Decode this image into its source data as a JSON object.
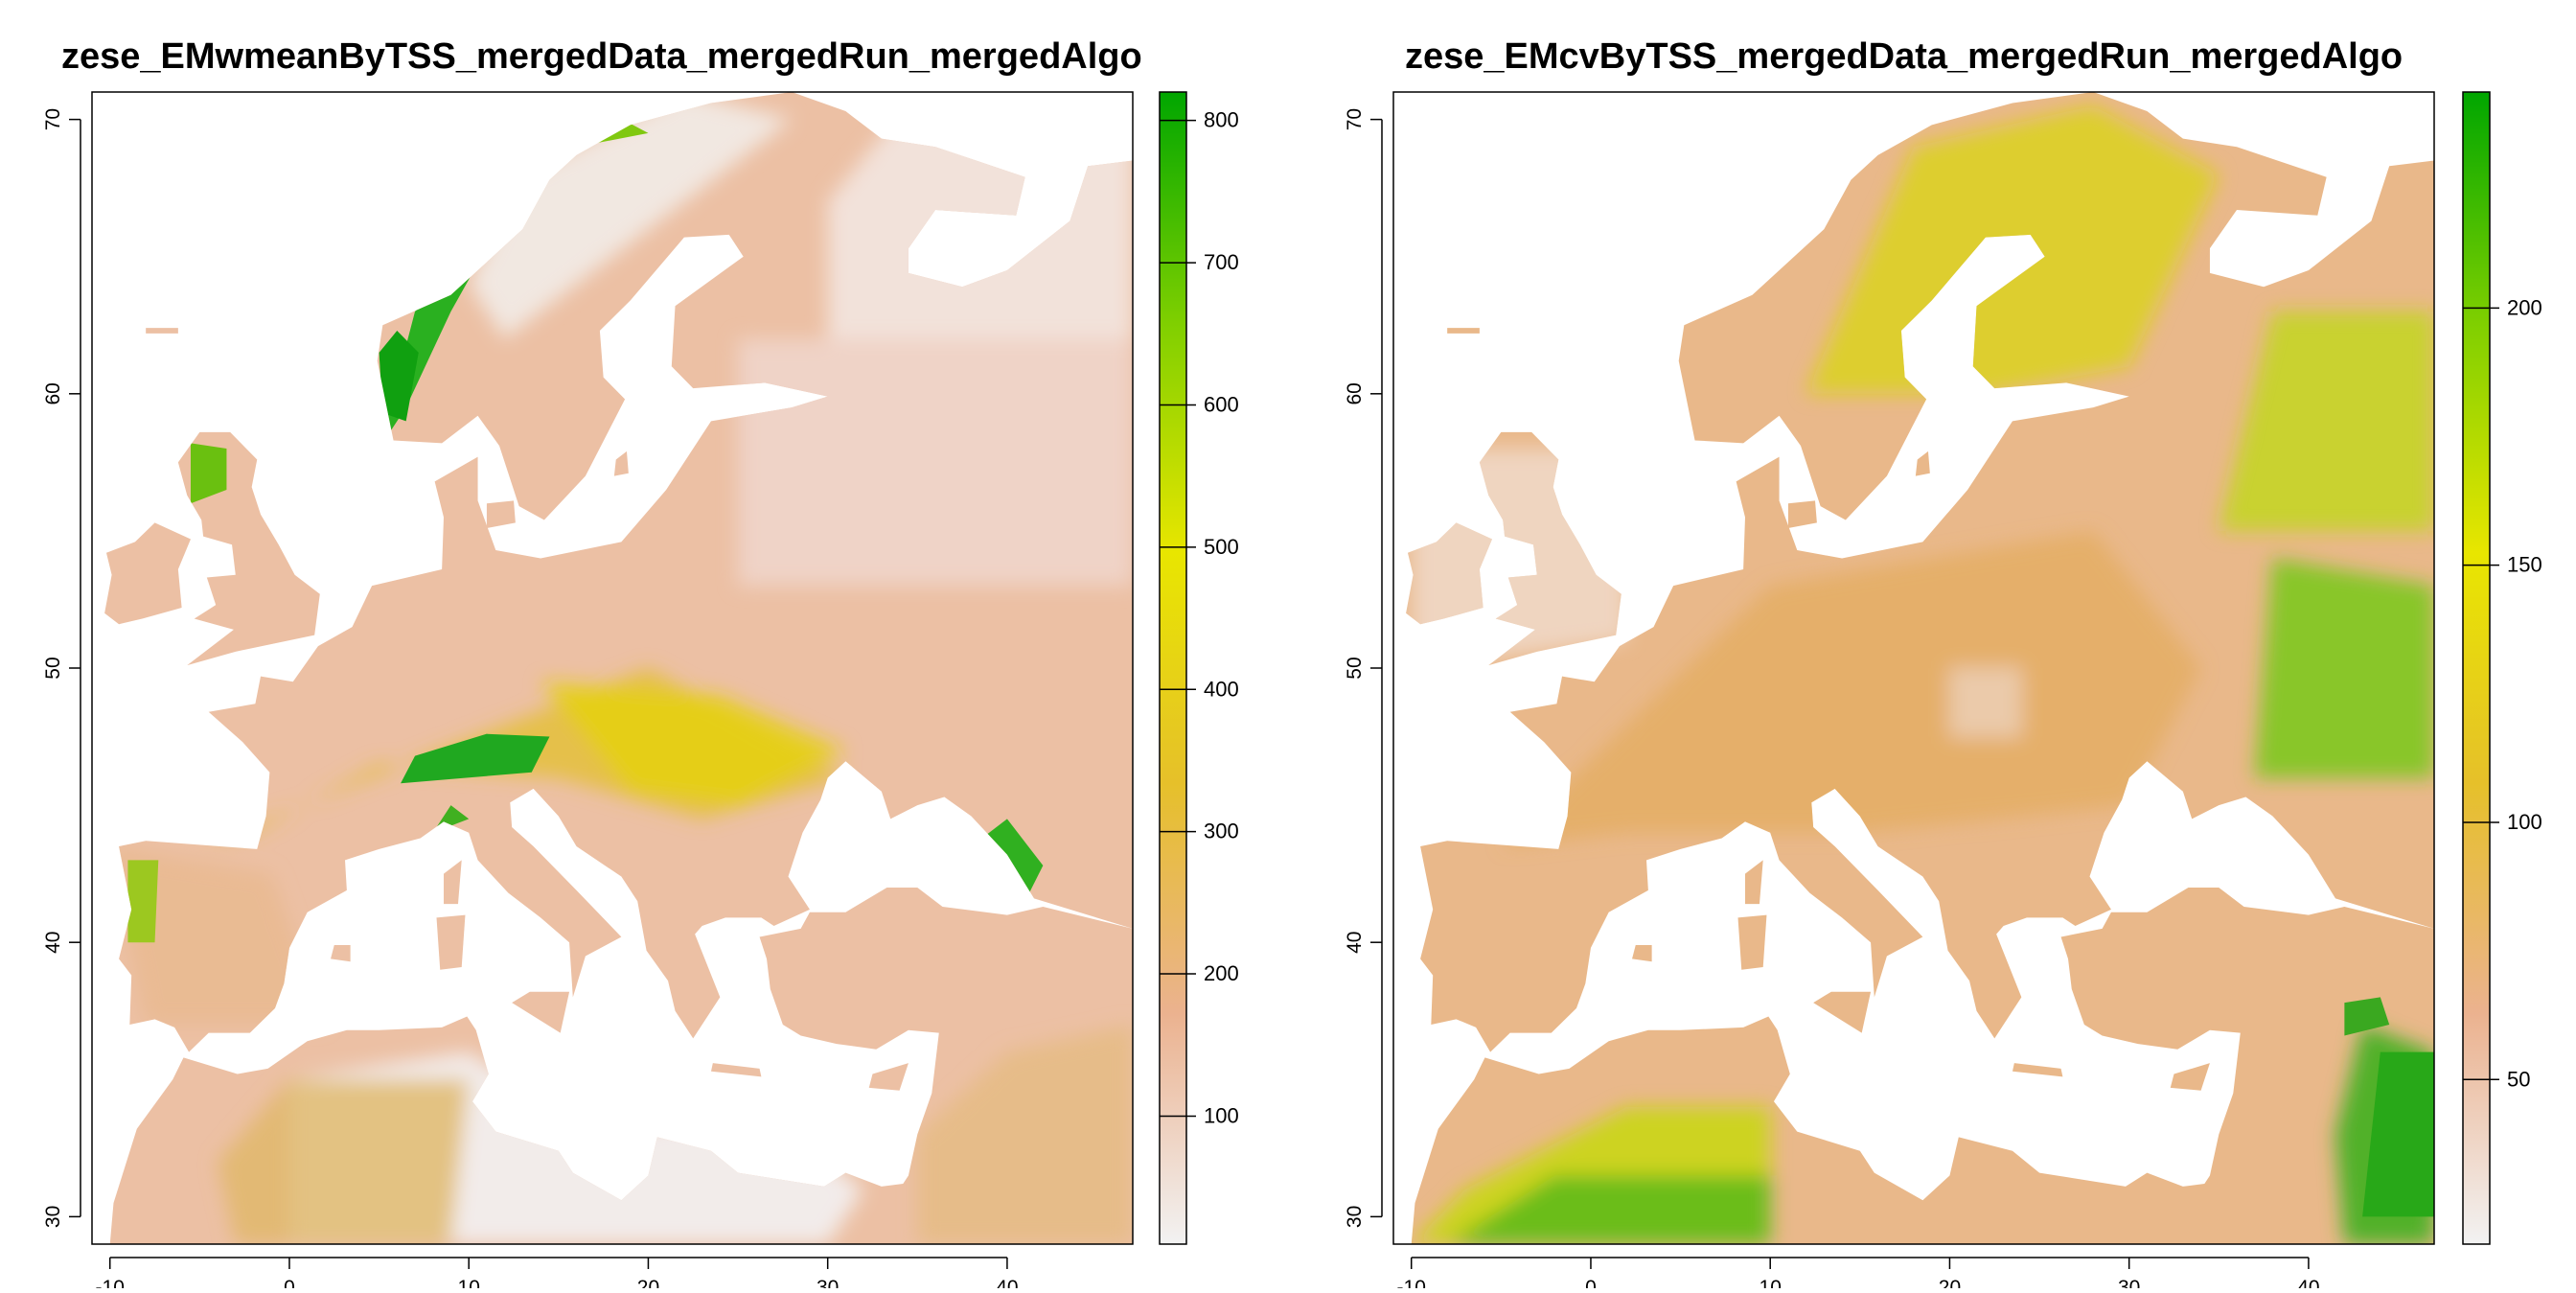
{
  "chart_data": [
    {
      "type": "heatmap",
      "title": "zese_EMwmeanByTSS_mergedData_mergedRun_mergedAlgo",
      "xlabel": "",
      "ylabel": "",
      "x_ticks": [
        -10,
        0,
        10,
        20,
        30,
        40
      ],
      "y_ticks": [
        30,
        40,
        50,
        60,
        70
      ],
      "xlim": [
        -11,
        47
      ],
      "ylim": [
        29,
        71
      ],
      "colorbar": {
        "ticks": [
          100,
          200,
          300,
          400,
          500,
          600,
          700,
          800
        ],
        "range": [
          10,
          820
        ],
        "colors": [
          "#f2f2f2",
          "#ebb28f",
          "#e6c02a",
          "#e8e600",
          "#7fcf00",
          "#00a600"
        ]
      }
    },
    {
      "type": "heatmap",
      "title": "zese_EMcvByTSS_mergedData_mergedRun_mergedAlgo",
      "xlabel": "",
      "ylabel": "",
      "x_ticks": [
        -10,
        0,
        10,
        20,
        30,
        40
      ],
      "y_ticks": [
        30,
        40,
        50,
        60,
        70
      ],
      "xlim": [
        -11,
        47
      ],
      "ylim": [
        29,
        71
      ],
      "colorbar": {
        "ticks": [
          50,
          100,
          150,
          200
        ],
        "range": [
          18,
          242
        ],
        "colors": [
          "#f2f2f2",
          "#ebb28f",
          "#e6c02a",
          "#e8e600",
          "#7fcf00",
          "#00a600"
        ]
      }
    }
  ]
}
